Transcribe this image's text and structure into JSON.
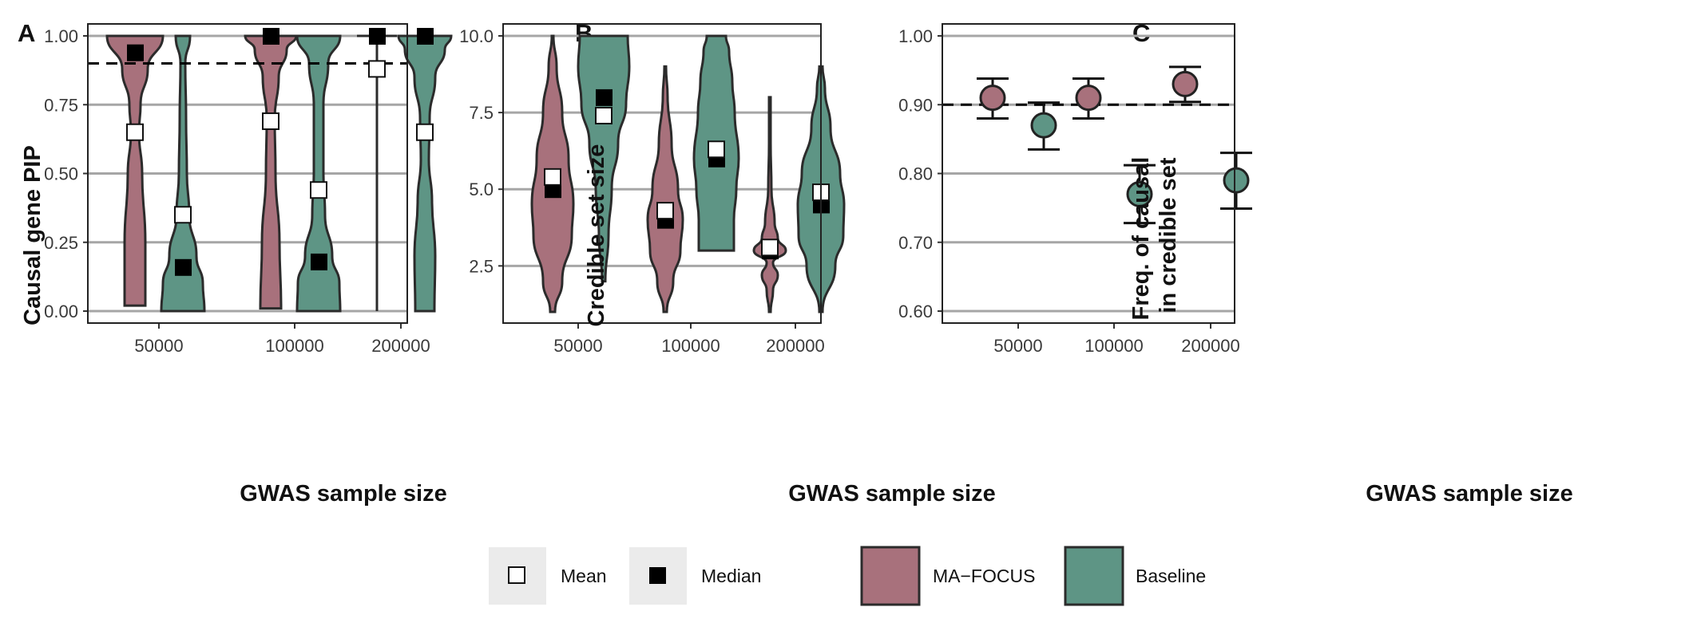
{
  "colors": {
    "ma_focus": "#a8717c",
    "baseline": "#5e9585",
    "grid": "#a6a6a6",
    "outline": "#2b2b2b"
  },
  "legend": {
    "mean": "Mean",
    "median": "Median",
    "ma_focus": "MA−FOCUS",
    "baseline": "Baseline"
  },
  "chart_data": [
    {
      "panel": "A",
      "type": "violin",
      "xlabel": "GWAS sample size",
      "ylabel": "Causal gene PIP",
      "categories": [
        "50000",
        "100000",
        "200000"
      ],
      "ylim": [
        0,
        1
      ],
      "yticks": [
        "0.00",
        "0.25",
        "0.50",
        "0.75",
        "1.00"
      ],
      "reference_line": 0.9,
      "series": [
        {
          "name": "MA−FOCUS",
          "mean": [
            0.65,
            0.69,
            0.88
          ],
          "median": [
            0.94,
            1.0,
            1.0
          ],
          "range": [
            [
              0.02,
              1.0
            ],
            [
              0.01,
              1.0
            ],
            [
              0.0,
              1.0
            ]
          ]
        },
        {
          "name": "Baseline",
          "mean": [
            0.35,
            0.44,
            0.65
          ],
          "median": [
            0.16,
            0.18,
            1.0
          ],
          "range": [
            [
              0.0,
              1.0
            ],
            [
              0.0,
              1.0
            ],
            [
              0.0,
              1.0
            ]
          ]
        }
      ]
    },
    {
      "panel": "B",
      "type": "violin",
      "xlabel": "GWAS sample size",
      "ylabel": "Credible set size",
      "categories": [
        "50000",
        "100000",
        "200000"
      ],
      "ylim": [
        1,
        10
      ],
      "yticks": [
        "2.5",
        "5.0",
        "7.5",
        "10.0"
      ],
      "series": [
        {
          "name": "MA−FOCUS",
          "mean": [
            5.4,
            4.3,
            3.1
          ],
          "median": [
            5.0,
            4.0,
            3.0
          ],
          "range": [
            [
              1,
              10
            ],
            [
              1,
              9
            ],
            [
              1,
              8
            ]
          ]
        },
        {
          "name": "Baseline",
          "mean": [
            7.4,
            6.3,
            4.9
          ],
          "median": [
            8.0,
            6.0,
            4.5
          ],
          "range": [
            [
              2,
              10
            ],
            [
              3,
              10
            ],
            [
              1,
              9
            ]
          ]
        }
      ]
    },
    {
      "panel": "C",
      "type": "scatter",
      "xlabel": "GWAS sample size",
      "ylabel": "Freq. of causal\nin credible set",
      "categories": [
        "50000",
        "100000",
        "200000"
      ],
      "ylim": [
        0.6,
        1.0
      ],
      "yticks": [
        "0.60",
        "0.70",
        "0.80",
        "0.90",
        "1.00"
      ],
      "reference_line": 0.9,
      "series": [
        {
          "name": "MA−FOCUS",
          "values": [
            0.91,
            0.91,
            0.93
          ],
          "ci_low": [
            0.88,
            0.88,
            0.904
          ],
          "ci_high": [
            0.938,
            0.938,
            0.955
          ]
        },
        {
          "name": "Baseline",
          "values": [
            0.87,
            0.77,
            0.79
          ],
          "ci_low": [
            0.835,
            0.728,
            0.749
          ],
          "ci_high": [
            0.903,
            0.812,
            0.83
          ]
        }
      ]
    }
  ]
}
